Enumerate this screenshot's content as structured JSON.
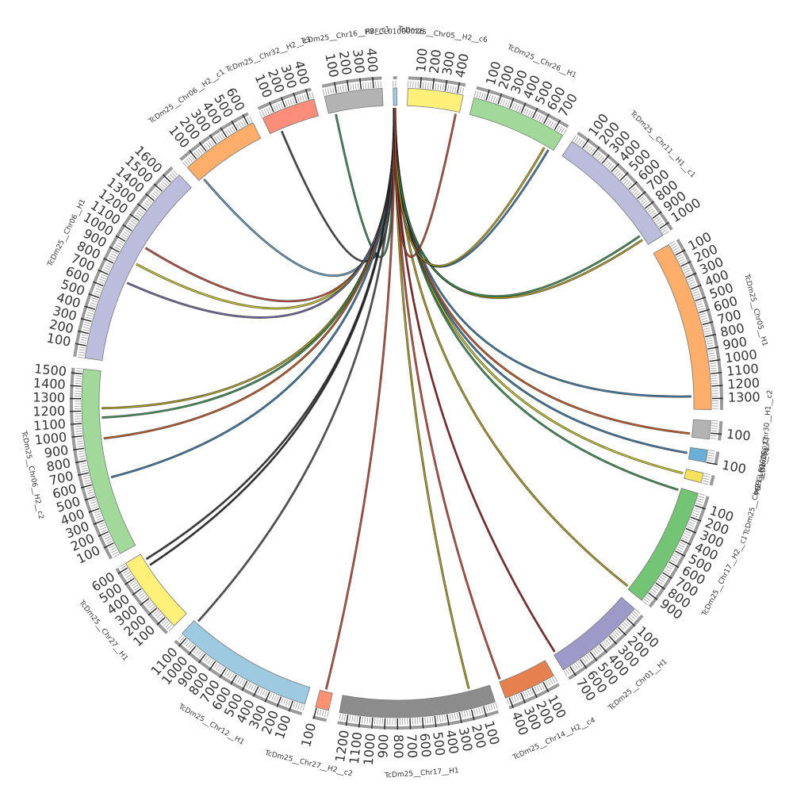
{
  "diagram": {
    "type": "circos",
    "chromosomes": [
      {
        "name": "PBFCL01000026",
        "length": 30,
        "color": "#9ecae1"
      },
      {
        "name": "TcDm25__Chr05__H2__c6",
        "length": 450,
        "color": "#fff07a"
      },
      {
        "name": "TcDm25__Chr26__H1",
        "length": 780,
        "color": "#a1d99b"
      },
      {
        "name": "TcDm25__Chr11__H1__c1",
        "length": 1060,
        "color": "#bcbddc"
      },
      {
        "name": "TcDm25__Chr05__H1",
        "length": 1390,
        "color": "#fdae6b"
      },
      {
        "name": "TcDm25__Chr30__H1__c2",
        "length": 150,
        "color": "#b3b3b3"
      },
      {
        "name": "PBFCL01000023",
        "length": 100,
        "color": "#6baed6"
      },
      {
        "name": "TcDm25__Chr21__H1__c4",
        "length": 80,
        "color": "#f6e25a"
      },
      {
        "name": "TcDm25__Chr17__H2__c1",
        "length": 980,
        "color": "#74c476"
      },
      {
        "name": "TcDm25__Chr01__H1",
        "length": 760,
        "color": "#9e9ac8"
      },
      {
        "name": "TcDm25__Chr14__H2__c4",
        "length": 430,
        "color": "#e6804e"
      },
      {
        "name": "TcDm25__Chr17__H1",
        "length": 1270,
        "color": "#8c8c8c"
      },
      {
        "name": "TcDm25__Chr27__H2__c2",
        "length": 110,
        "color": "#fc9272"
      },
      {
        "name": "TcDm25__Chr12__H1",
        "length": 1150,
        "color": "#9ecae1"
      },
      {
        "name": "TcDm25__Chr27__H1",
        "length": 640,
        "color": "#fff07a"
      },
      {
        "name": "TcDm25__Chr06__H2__c2",
        "length": 1540,
        "color": "#a1d99b"
      },
      {
        "name": "TcDm25__Chr06__H1",
        "length": 1690,
        "color": "#bcbddc"
      },
      {
        "name": "TcDm25__Chr06__H2__c1",
        "length": 640,
        "color": "#fdae6b"
      },
      {
        "name": "TcDm25__Chr32__H2__c3",
        "length": 440,
        "color": "#fc8d7b"
      },
      {
        "name": "TcDm25__Chr16__H2__c1",
        "length": 470,
        "color": "#b3b3b3"
      }
    ],
    "tick_step": 100,
    "links": [
      {
        "target": "TcDm25__Chr16__H2__c1",
        "pos": 60,
        "color": "#2ca25f"
      },
      {
        "target": "TcDm25__Chr32__H2__c3",
        "pos": 100,
        "color": "#444444"
      },
      {
        "target": "TcDm25__Chr06__H2__c1",
        "pos": 40,
        "color": "#6baed6"
      },
      {
        "target": "TcDm25__Chr06__H1",
        "pos": 1040,
        "color": "#e34a33"
      },
      {
        "target": "TcDm25__Chr06__H1",
        "pos": 880,
        "color": "#e6e600"
      },
      {
        "target": "TcDm25__Chr06__H1",
        "pos": 700,
        "color": "#756bb1"
      },
      {
        "target": "TcDm25__Chr06__H2__c2",
        "pos": 1220,
        "color": "#c7b200"
      },
      {
        "target": "TcDm25__Chr06__H2__c2",
        "pos": 1140,
        "color": "#31a354"
      },
      {
        "target": "TcDm25__Chr06__H2__c2",
        "pos": 960,
        "color": "#e6550d"
      },
      {
        "target": "TcDm25__Chr06__H2__c2",
        "pos": 620,
        "color": "#3182bd"
      },
      {
        "target": "TcDm25__Chr27__H1",
        "pos": 580,
        "color": "#333333"
      },
      {
        "target": "TcDm25__Chr27__H1",
        "pos": 520,
        "color": "#222222"
      },
      {
        "target": "TcDm25__Chr12__H1",
        "pos": 1120,
        "color": "#555555"
      },
      {
        "target": "TcDm25__Chr27__H2__c2",
        "pos": 60,
        "color": "#e34a33"
      },
      {
        "target": "TcDm25__Chr17__H1",
        "pos": 180,
        "color": "#c7b200"
      },
      {
        "target": "TcDm25__Chr14__H2__c4",
        "pos": 420,
        "color": "#e34a33"
      },
      {
        "target": "TcDm25__Chr01__H1",
        "pos": 740,
        "color": "#a50f15"
      },
      {
        "target": "TcDm25__Chr17__H2__c1",
        "pos": 960,
        "color": "#c7b200"
      },
      {
        "target": "TcDm25__Chr17__H2__c1",
        "pos": 20,
        "color": "#31a354"
      },
      {
        "target": "TcDm25__Chr21__H1__c4",
        "pos": 40,
        "color": "#e6e600"
      },
      {
        "target": "PBFCL01000023",
        "pos": 50,
        "color": "#3182bd"
      },
      {
        "target": "TcDm25__Chr30__H1__c2",
        "pos": 120,
        "color": "#e6550d"
      },
      {
        "target": "TcDm25__Chr05__H1",
        "pos": 1280,
        "color": "#3182bd"
      },
      {
        "target": "TcDm25__Chr11__H1__c1",
        "pos": 1000,
        "color": "#c7b200"
      },
      {
        "target": "TcDm25__Chr11__H1__c1",
        "pos": 960,
        "color": "#31a354"
      },
      {
        "target": "TcDm25__Chr26__H1",
        "pos": 740,
        "color": "#3182bd"
      },
      {
        "target": "TcDm25__Chr26__H1",
        "pos": 700,
        "color": "#c7b200"
      },
      {
        "target": "TcDm25__Chr05__H2__c6",
        "pos": 420,
        "color": "#e34a33"
      }
    ]
  }
}
